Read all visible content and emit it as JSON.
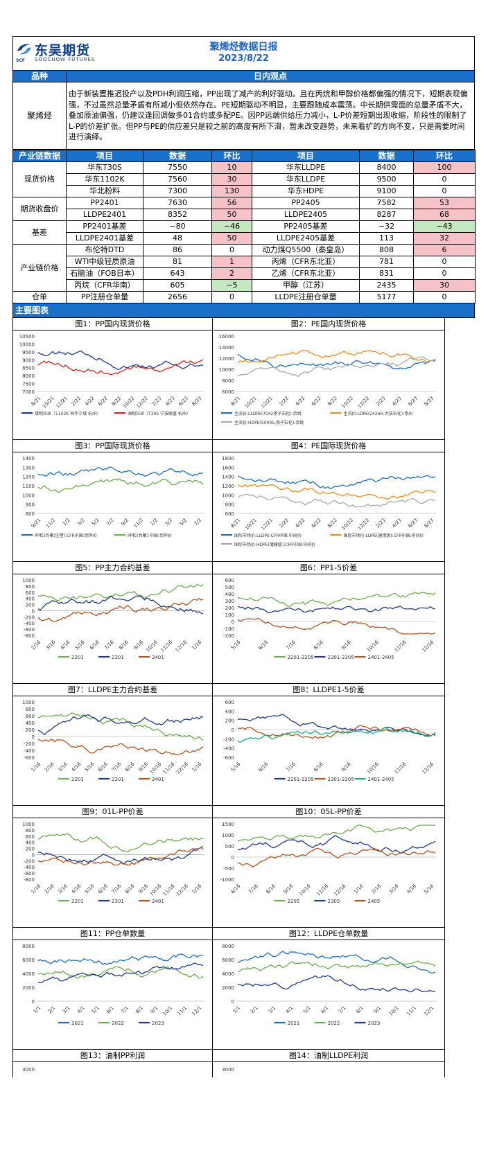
{
  "header": {
    "logo_cn": "东吴期货",
    "logo_en": "SOOCHOW FUTURES",
    "logo_sub": "SCF",
    "title": "聚烯烃数据日报",
    "date": "2023/8/22"
  },
  "view": {
    "col1": "品种",
    "col2": "日内观点",
    "product": "聚烯烃",
    "text": "由于新装置推迟投产以及PDH利润压缩，PP出现了减产的利好驱动。且在丙烷和甲醇价格都偏强的情况下，短期表现偏强，不过虽然总量矛盾有所减小但依然存在。PE短期驱动不明显，主要跟随成本震荡。中长期供需面的总量矛盾不大，叠加原油偏强，仍建议逢回调做多01合约或多配PE。因PP远端供给压力减小，L-P价差短期出现收缩，阶段性的限制了L-P的价差扩张。但PP与PE的供应差只是较之前的高度有所下滑，暂未改变趋势，未来看扩的方向不变，只是需要时间进行演绎。"
  },
  "table": {
    "headers": [
      "产业链数据",
      "项目",
      "数据",
      "环比",
      "项目",
      "数据",
      "环比"
    ],
    "groups": [
      {
        "name": "现货价格",
        "rows": [
          [
            "华东T30S",
            "7550",
            "10",
            "华东LLDPE",
            "8400",
            "100"
          ],
          [
            "华东1102K",
            "7560",
            "30",
            "华东LLDPE",
            "9500",
            "0"
          ],
          [
            "华北粉料",
            "7300",
            "130",
            "华东HDPE",
            "9100",
            "0"
          ]
        ]
      },
      {
        "name": "期货收盘价",
        "rows": [
          [
            "PP2401",
            "7630",
            "56",
            "PP2405",
            "7582",
            "53"
          ],
          [
            "LLDPE2401",
            "8352",
            "50",
            "LLDPE2405",
            "8287",
            "68"
          ]
        ]
      },
      {
        "name": "基差",
        "rows": [
          [
            "PP2401基差",
            "−80",
            "−46",
            "PP2405基差",
            "−32",
            "−43"
          ],
          [
            "LLDPE2401基差",
            "48",
            "50",
            "LLDPE2405基差",
            "113",
            "32"
          ]
        ]
      },
      {
        "name": "产业链价格",
        "rows": [
          [
            "布伦特DTD",
            "86",
            "0",
            "动力煤Q5500（秦皇岛）",
            "808",
            "6"
          ],
          [
            "WTI中级轻质原油",
            "81",
            "1",
            "丙烯（CFR东北亚）",
            "781",
            "0"
          ],
          [
            "石脑油（FOB日本）",
            "643",
            "2",
            "乙烯（CFR东北亚）",
            "831",
            "0"
          ],
          [
            "丙烷（CFR华南）",
            "605",
            "−5",
            "甲醇（江苏）",
            "2435",
            "30"
          ]
        ]
      },
      {
        "name": "仓单",
        "rows": [
          [
            "PP注册仓单量",
            "2656",
            "0",
            "LLDPE注册仓单量",
            "5177",
            "0"
          ]
        ]
      }
    ]
  },
  "section": "主要图表",
  "charts": [
    {
      "caption": "图1：PP国内现货价格",
      "ticks_y": [
        "10500",
        "10000",
        "9500",
        "9000",
        "8500",
        "8000",
        "7500",
        "7000"
      ],
      "ticks_x": [
        "8/21",
        "10/21",
        "12/21",
        "2/22",
        "4/22",
        "6/22",
        "8/22",
        "10/22",
        "12/22",
        "2/23",
        "4/23",
        "6/23",
        "8/23"
      ],
      "legend": [
        "煤制拉丝（1102K 神华宁煤 杭州）",
        "油制拉丝（T30S 宁波联盛 杭州）"
      ]
    },
    {
      "caption": "图2：PE国内现货价格",
      "ticks_y": [
        "16000",
        "14000",
        "12000",
        "10000",
        "8000",
        "6000"
      ],
      "ticks_x": [
        "8/21",
        "10/21",
        "12/21",
        "2/22",
        "4/22",
        "6/22",
        "8/22",
        "10/22",
        "12/22",
        "2/23",
        "4/23",
        "6/23",
        "8/23"
      ],
      "legend": [
        "主流价:LLDPE(7042扬子石化):余姚",
        "主流价:LDPE(2426H,大庆石化):常州",
        "主流价:HDPE(5000S,扬子石化):余姚"
      ]
    },
    {
      "caption": "图3：PP国际现货价格",
      "ticks_y": [
        "1400",
        "1300",
        "1200",
        "1100",
        "1000",
        "900",
        "800"
      ],
      "ticks_x": [
        "9/21",
        "11/2",
        "1/2",
        "3/2",
        "5/2",
        "7/2",
        "9/2",
        "11/2",
        "1/2",
        "3/2",
        "5/2",
        "7/2"
      ],
      "legend": [
        "PP粒(均聚/注塑):CFR中国:到岸价",
        "PP粒(共聚):中国:到岸价"
      ]
    },
    {
      "caption": "图4：PE国际现货价格",
      "ticks_y": [
        "1800",
        "1600",
        "1400",
        "1200",
        "1000",
        "800",
        "600"
      ],
      "ticks_x": [
        "8/21",
        "10/21",
        "12/21",
        "2/22",
        "4/22",
        "6/22",
        "8/22",
        "10/22",
        "12/22",
        "2/23",
        "4/23",
        "6/23",
        "8/23"
      ],
      "legend": [
        "国际市场价:LLDPE:CFR中国:中间价",
        "国际市场价:LDPE(通用级):CFR中国:中间价",
        "国际市场价:HDPE(薄膜级):CFR中国:中间价"
      ]
    },
    {
      "caption": "图5：PP主力合约基差",
      "ticks_y": [
        "1000",
        "800",
        "600",
        "400",
        "200",
        "0",
        "-200",
        "-400",
        "-600",
        "-800"
      ],
      "ticks_x": [
        "2/16",
        "3/16",
        "4/16",
        "5/16",
        "6/16",
        "7/16",
        "8/16",
        "9/16",
        "10/16",
        "11/16",
        "12/16",
        "1/16"
      ],
      "legend": [
        "2201",
        "2301",
        "2401"
      ]
    },
    {
      "caption": "图6：PP1-5价差",
      "ticks_y": [
        "600",
        "500",
        "400",
        "300",
        "200",
        "100",
        "0",
        "-100",
        "-200"
      ],
      "ticks_x": [
        "5/16",
        "6/16",
        "7/16",
        "8/16",
        "9/16",
        "10/16",
        "11/16",
        "12/16"
      ],
      "legend": [
        "2201-2205",
        "2301-2305",
        "2401-2405"
      ]
    },
    {
      "caption": "图7：LLDPE主力合约基差",
      "ticks_y": [
        "1000",
        "800",
        "600",
        "400",
        "200",
        "0",
        "-200",
        "-400",
        "-600"
      ],
      "ticks_x": [
        "1/16",
        "2/16",
        "3/16",
        "4/16",
        "5/16",
        "6/16",
        "7/16",
        "8/16",
        "9/16",
        "10/16",
        "11/16",
        "12/16",
        "1/16"
      ],
      "legend": [
        "2201",
        "2301",
        "2401"
      ]
    },
    {
      "caption": "图8：LLDPE1-5价差",
      "ticks_y": [
        "600",
        "400",
        "200",
        "0",
        "-200",
        "-400",
        "-600"
      ],
      "ticks_x": [
        "5/16",
        "6/16",
        "7/16",
        "8/16",
        "9/16",
        "10/16",
        "11/16",
        "12/16"
      ],
      "legend": [
        "2201-2205",
        "2301-2305",
        "2401-2405"
      ]
    },
    {
      "caption": "图9：01L-PP价差",
      "ticks_y": [
        "1000",
        "800",
        "600",
        "400",
        "200",
        "0",
        "-200",
        "-400",
        "-600",
        "-800"
      ],
      "ticks_x": [
        "1/16",
        "2/16",
        "3/16",
        "4/16",
        "5/16",
        "6/16",
        "7/16",
        "8/16",
        "9/16",
        "10/16",
        "11/16",
        "12/16",
        "1/16"
      ],
      "legend": [
        "2201",
        "2301",
        "2401"
      ]
    },
    {
      "caption": "图10：05L-PP价差",
      "ticks_y": [
        "1500",
        "1000",
        "500",
        "0",
        "-500",
        "-1000"
      ],
      "ticks_x": [
        "6/16",
        "7/16",
        "8/16",
        "9/16",
        "10/16",
        "11/16",
        "12/16",
        "1/16",
        "2/16",
        "3/16",
        "4/16",
        "5/16"
      ],
      "legend": [
        "2205",
        "2305",
        "2405"
      ]
    },
    {
      "caption": "图11：PP仓单数量",
      "ticks_y": [
        "8000",
        "6000",
        "4000",
        "2000",
        "0"
      ],
      "ticks_x": [
        "1/1",
        "2/1",
        "3/1",
        "4/1",
        "5/1",
        "6/1",
        "7/1",
        "8/1",
        "9/1",
        "10/1",
        "11/1",
        "12/1"
      ],
      "legend": [
        "2021",
        "2022",
        "2023"
      ]
    },
    {
      "caption": "图12：LLDPE仓单数量",
      "ticks_y": [
        "8000",
        "6000",
        "4000",
        "2000",
        "0"
      ],
      "ticks_x": [
        "1/1",
        "2/1",
        "3/1",
        "4/1",
        "5/1",
        "6/1",
        "7/1",
        "8/1",
        "9/1",
        "10/1",
        "11/1",
        "12/1"
      ],
      "legend": [
        "2021",
        "2022",
        "2023"
      ]
    },
    {
      "caption": "图13：油制PP利润",
      "ticks_y": [
        "3000"
      ],
      "ticks_x": [],
      "legend": []
    },
    {
      "caption": "图14：油制LLDPE利润",
      "ticks_y": [
        "3000"
      ],
      "ticks_x": [],
      "legend": []
    }
  ],
  "colors": {
    "blue": "#1a6fc8",
    "red_bg": "#f5c2c7",
    "green_bg": "#c4e8c0",
    "navy": "#1f3a8a",
    "red": "#e02020",
    "orange": "#f08a24",
    "gray": "#a8a8a8",
    "green": "#6ab04c",
    "brown": "#b5541c",
    "teal": "#19b07a",
    "yellow": "#f5c400"
  }
}
